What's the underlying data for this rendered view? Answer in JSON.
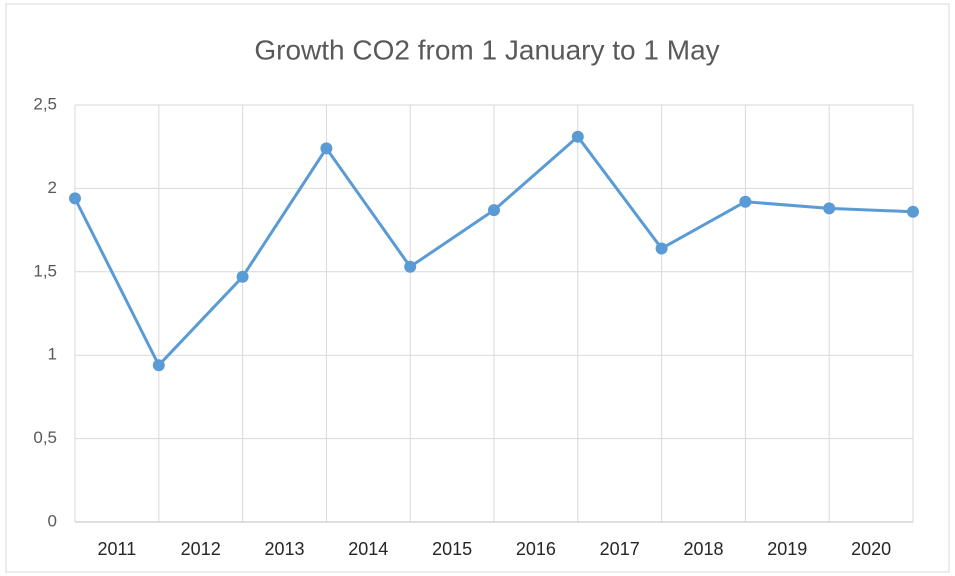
{
  "chart_data": {
    "type": "line",
    "title": "Growth CO2 from 1 January to 1 May",
    "x": [
      2010.5,
      2011.5,
      2012.5,
      2013.5,
      2014.5,
      2015.5,
      2016.5,
      2017.5,
      2018.5,
      2019.5,
      2020.5
    ],
    "series": [
      {
        "color": "#5b9bd5",
        "values": [
          1.94,
          0.94,
          1.47,
          2.24,
          1.53,
          1.87,
          2.31,
          1.64,
          1.92,
          1.88,
          1.86
        ]
      }
    ],
    "xlim": [
      2010.5,
      2020.5
    ],
    "xticks": [
      2011,
      2012,
      2013,
      2014,
      2015,
      2016,
      2017,
      2018,
      2019,
      2020
    ],
    "ylim": [
      0,
      2.5
    ],
    "yticks": [
      0,
      {
        "value": 0.5,
        "label": "0,5"
      },
      1,
      {
        "value": 1.5,
        "label": "1,5"
      },
      2,
      {
        "value": 2.5,
        "label": "2,5"
      }
    ],
    "grid": true
  }
}
